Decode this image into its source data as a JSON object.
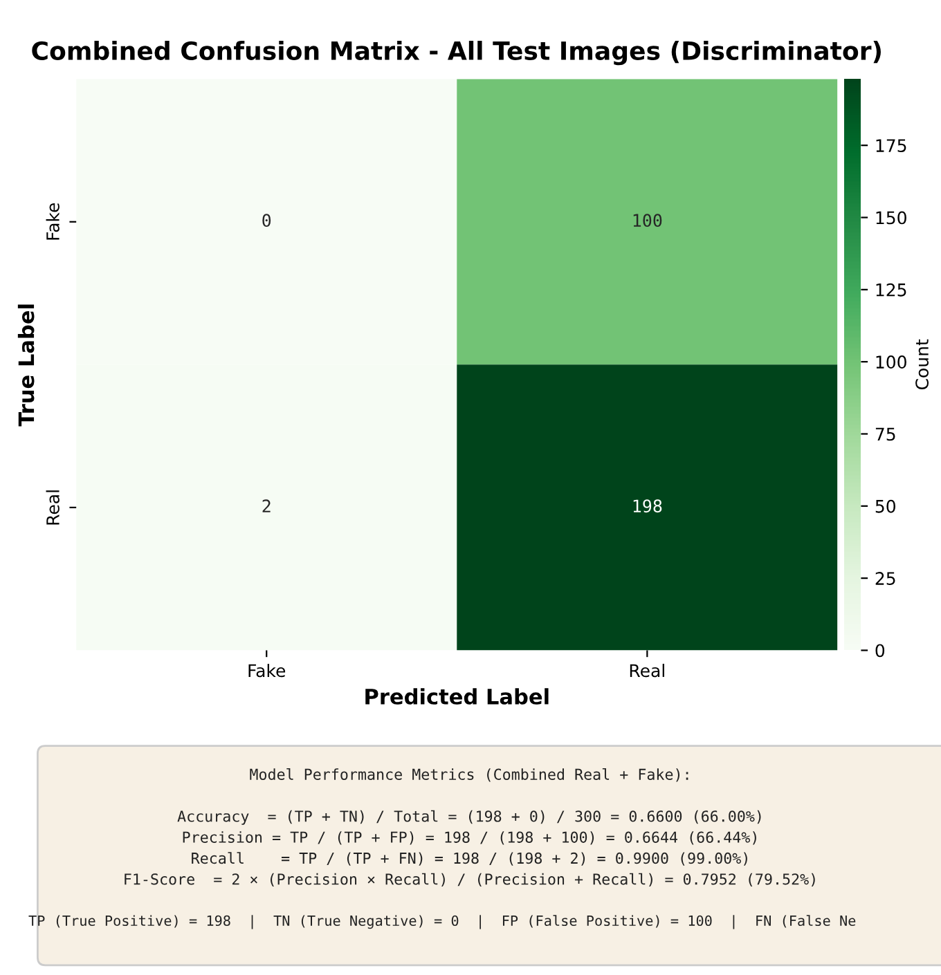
{
  "chart_data": {
    "type": "heatmap",
    "title": "Combined Confusion Matrix - All Test Images (Discriminator)",
    "xlabel": "Predicted Label",
    "ylabel": "True Label",
    "clabel": "Count",
    "categories": [
      "Fake",
      "Real"
    ],
    "y_categories": [
      "Fake",
      "Real"
    ],
    "cells": [
      [
        0,
        100
      ],
      [
        2,
        198
      ]
    ],
    "clim": [
      0,
      198
    ],
    "cticks": [
      0,
      25,
      50,
      75,
      100,
      125,
      150,
      175
    ],
    "data_labels": true,
    "annotations": [
      "Model Performance Metrics (Combined Real + Fake):",
      "Accuracy  = (TP + TN) / Total = (198 + 0) / 300 = 0.6600 (66.00%)",
      "Precision = TP / (TP + FP) = 198 / (198 + 100) = 0.6644 (66.44%)",
      "Recall    = TP / (TP + FN) = 198 / (198 + 2) = 0.9900 (99.00%)",
      "F1-Score  = 2 × (Precision × Recall) / (Precision + Recall) = 0.7952 (79.52%)",
      "TP (True Positive) = 198  |  TN (True Negative) = 0  |  FP (False Positive) = 100  |  FN (False Ne"
    ]
  }
}
